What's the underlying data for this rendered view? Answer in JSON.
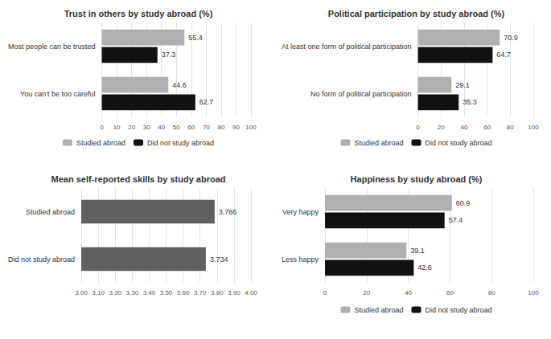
{
  "chart_data": [
    {
      "type": "bar",
      "orientation": "horizontal",
      "title": "Trust in others by study abroad (%)",
      "categories": [
        "Most people can be trusted",
        "You can't be too careful"
      ],
      "series": [
        {
          "name": "Studied abroad",
          "color": "#b0b0b0",
          "values": [
            55.4,
            44.6
          ]
        },
        {
          "name": "Did not study abroad",
          "color": "#111111",
          "values": [
            37.3,
            62.7
          ]
        }
      ],
      "xlim": [
        0,
        100
      ],
      "xticks": [
        0,
        10,
        20,
        30,
        40,
        50,
        60,
        70,
        80,
        90,
        100
      ],
      "grid": true,
      "data_labels": true,
      "legend": "bottom"
    },
    {
      "type": "bar",
      "orientation": "horizontal",
      "title": "Political participation by study abroad (%)",
      "categories": [
        "At least one form of political participation",
        "No form of political participation"
      ],
      "series": [
        {
          "name": "Studied abroad",
          "color": "#b0b0b0",
          "values": [
            70.9,
            29.1
          ]
        },
        {
          "name": "Did not study abroad",
          "color": "#111111",
          "values": [
            64.7,
            35.3
          ]
        }
      ],
      "xlim": [
        0,
        100
      ],
      "xticks": [
        0,
        20,
        40,
        60,
        80,
        100
      ],
      "grid": true,
      "data_labels": true,
      "legend": "bottom"
    },
    {
      "type": "bar",
      "orientation": "horizontal",
      "title": "Mean self-reported skills by study abroad",
      "categories": [
        "Studied abroad",
        "Did not study abroad"
      ],
      "values": [
        3.786,
        3.734
      ],
      "color": "#606060",
      "xlim": [
        3.0,
        4.0
      ],
      "xticks": [
        {
          "value": 3.0,
          "label": "3.00"
        },
        {
          "value": 3.1,
          "label": "3.10"
        },
        {
          "value": 3.2,
          "label": "3.20"
        },
        {
          "value": 3.3,
          "label": "3.30"
        },
        {
          "value": 3.4,
          "label": "3.40"
        },
        {
          "value": 3.5,
          "label": "3.50"
        },
        {
          "value": 3.6,
          "label": "3.60"
        },
        {
          "value": 3.7,
          "label": "3.70"
        },
        {
          "value": 3.8,
          "label": "3.80"
        },
        {
          "value": 3.9,
          "label": "3.90"
        },
        {
          "value": 4.0,
          "label": "4.00"
        }
      ],
      "grid": true,
      "data_labels": true
    },
    {
      "type": "bar",
      "orientation": "horizontal",
      "title": "Happiness by study abroad (%)",
      "categories": [
        "Very happy",
        "Less happy"
      ],
      "series": [
        {
          "name": "Studied abroad",
          "color": "#b0b0b0",
          "values": [
            60.9,
            39.1
          ]
        },
        {
          "name": "Did not study abroad",
          "color": "#111111",
          "values": [
            57.4,
            42.6
          ]
        }
      ],
      "xlim": [
        0,
        100
      ],
      "xticks": [
        0,
        20,
        40,
        60,
        80,
        100
      ],
      "grid": true,
      "data_labels": true,
      "legend": "bottom"
    }
  ]
}
